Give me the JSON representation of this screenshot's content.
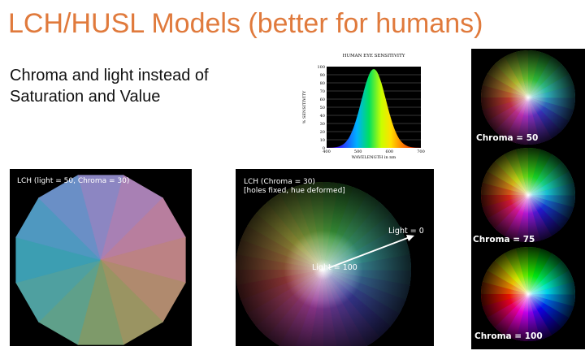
{
  "slide": {
    "title": "LCH/HUSL Models (better for humans)",
    "subtitle_line1": "Chroma and light instead of",
    "subtitle_line2": "Saturation and Value"
  },
  "eye_chart": {
    "title": "HUMAN EYE SENSITIVITY",
    "ylabel": "% SENSITIVITY",
    "xlabel": "WAVELENGTH in nm",
    "yticks": [
      "0",
      "10",
      "20",
      "30",
      "40",
      "50",
      "60",
      "70",
      "80",
      "90",
      "100"
    ],
    "xticks": [
      "400",
      "500",
      "600",
      "700"
    ]
  },
  "panels": {
    "left_label": "LCH (light = 50, Chroma = 30)",
    "mid_label_1": "LCH (Chroma = 30)",
    "mid_label_2": "[holes fixed, hue deformed]",
    "light0_label": "Light = 0",
    "light100_label": "Light = 100",
    "chroma50_label": "Chroma = 50",
    "chroma75_label": "Chroma = 75",
    "chroma100_label": "Chroma = 100"
  },
  "colors": {
    "title": "#e07a3c",
    "panel_bg": "#000000",
    "wheel_left": [
      "#5fa08a",
      "#4fa0a0",
      "#3c9eb2",
      "#4f98c0",
      "#6a8fc6",
      "#8c86c2",
      "#a880b4",
      "#b87e9e",
      "#bc8284",
      "#b08a6e",
      "#9a9462",
      "#7e9a6a"
    ]
  }
}
